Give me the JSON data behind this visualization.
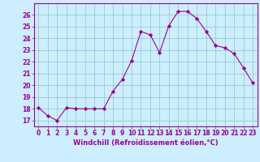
{
  "x": [
    0,
    1,
    2,
    3,
    4,
    5,
    6,
    7,
    8,
    9,
    10,
    11,
    12,
    13,
    14,
    15,
    16,
    17,
    18,
    19,
    20,
    21,
    22,
    23
  ],
  "y": [
    18.1,
    17.4,
    17.0,
    18.1,
    18.0,
    18.0,
    18.0,
    18.0,
    19.5,
    20.5,
    22.1,
    24.6,
    24.3,
    22.8,
    25.1,
    26.3,
    26.3,
    25.7,
    24.6,
    23.4,
    23.2,
    22.7,
    21.5,
    20.2
  ],
  "line_color": "#990099",
  "marker": "D",
  "marker_size": 2.2,
  "bg_color": "#cceeff",
  "grid_color": "#99cccc",
  "xlabel": "Windchill (Refroidissement éolien,°C)",
  "xlabel_fontsize": 6.0,
  "tick_fontsize": 5.5,
  "ylim": [
    16.5,
    27.0
  ],
  "xlim": [
    -0.5,
    23.5
  ],
  "yticks": [
    17,
    18,
    19,
    20,
    21,
    22,
    23,
    24,
    25,
    26
  ],
  "xticks": [
    0,
    1,
    2,
    3,
    4,
    5,
    6,
    7,
    8,
    9,
    10,
    11,
    12,
    13,
    14,
    15,
    16,
    17,
    18,
    19,
    20,
    21,
    22,
    23
  ]
}
